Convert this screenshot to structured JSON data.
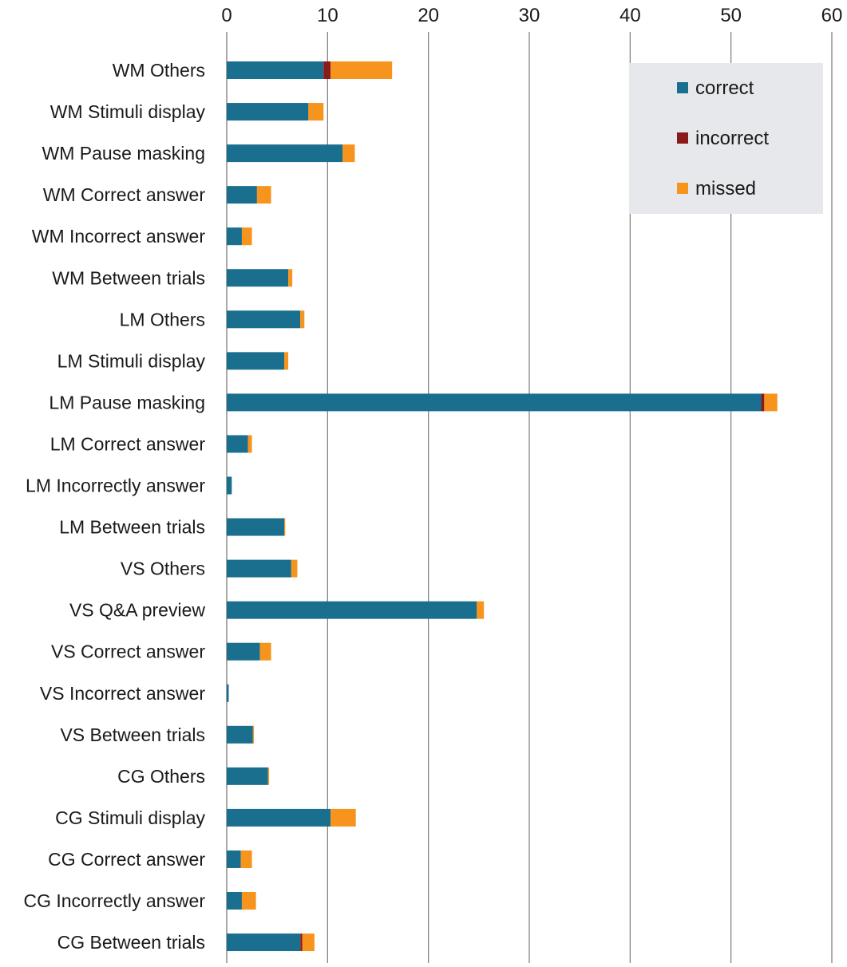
{
  "chart_data": {
    "type": "bar",
    "orientation": "horizontal",
    "stacked": true,
    "categories": [
      "WM Others",
      "WM Stimuli display",
      "WM Pause masking",
      "WM Correct answer",
      "WM Incorrect answer",
      "WM Between trials",
      "LM Others",
      "LM Stimuli display",
      "LM Pause masking",
      "LM Correct answer",
      "LM Incorrectly answer",
      "LM Between trials",
      "VS Others",
      "VS Q&A preview",
      "VS Correct answer",
      "VS Incorrect answer",
      "VS Between trials",
      "CG Others",
      "CG Stimuli display",
      "CG Correct answer",
      "CG Incorrectly answer",
      "CG Between trials"
    ],
    "series": [
      {
        "name": "correct",
        "color": "#1a6e8e",
        "values": [
          9.6,
          8.1,
          11.5,
          3.0,
          1.5,
          6.1,
          7.3,
          5.7,
          53.0,
          2.1,
          0.5,
          5.7,
          6.4,
          24.8,
          3.3,
          0.2,
          2.6,
          4.1,
          10.3,
          1.4,
          1.5,
          7.3
        ]
      },
      {
        "name": "incorrect",
        "color": "#8b1a1a",
        "values": [
          0.7,
          0,
          0,
          0,
          0,
          0,
          0,
          0,
          0.3,
          0,
          0,
          0,
          0,
          0,
          0,
          0,
          0,
          0,
          0,
          0,
          0,
          0.2
        ]
      },
      {
        "name": "missed",
        "color": "#f7941d",
        "values": [
          6.1,
          1.5,
          1.2,
          1.4,
          1.0,
          0.4,
          0.4,
          0.4,
          1.3,
          0.4,
          0,
          0.1,
          0.6,
          0.7,
          1.1,
          0,
          0.1,
          0.1,
          2.5,
          1.1,
          1.4,
          1.2
        ]
      }
    ],
    "ticks": [
      "0",
      "10",
      "20",
      "30",
      "40",
      "50",
      "60"
    ],
    "xlim": [
      0,
      60
    ],
    "grid": true,
    "legend": "top-right",
    "title": "",
    "xlabel": "",
    "ylabel": ""
  }
}
